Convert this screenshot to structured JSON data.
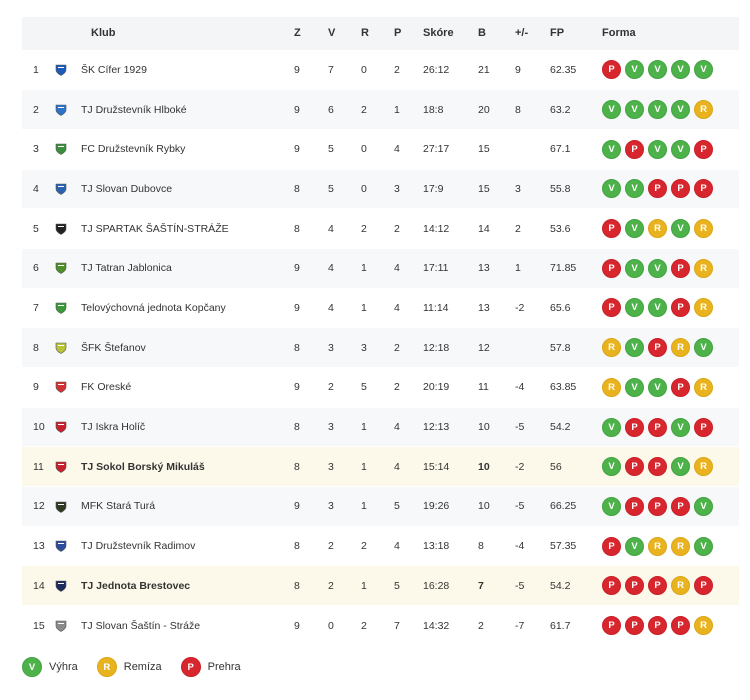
{
  "header": {
    "club": "Klub",
    "z": "Z",
    "v": "V",
    "r": "R",
    "p": "P",
    "score": "Skóre",
    "b": "B",
    "diff": "+/-",
    "fp": "FP",
    "form": "Forma"
  },
  "rows": [
    {
      "pos": "1",
      "club": "ŠK Cífer 1929",
      "z": "9",
      "v": "7",
      "r": "0",
      "p": "2",
      "score": "26:12",
      "b": "21",
      "diff": "9",
      "fp": "62.35",
      "form": [
        "P",
        "V",
        "V",
        "V",
        "V"
      ],
      "crest": "#1e5ab8",
      "hl": false
    },
    {
      "pos": "2",
      "club": "TJ Družstevník Hlboké",
      "z": "9",
      "v": "6",
      "r": "2",
      "p": "1",
      "score": "18:8",
      "b": "20",
      "diff": "8",
      "fp": "63.2",
      "form": [
        "V",
        "V",
        "V",
        "V",
        "R"
      ],
      "crest": "#2d74c9",
      "hl": false
    },
    {
      "pos": "3",
      "club": "FC Družstevník Rybky",
      "z": "9",
      "v": "5",
      "r": "0",
      "p": "4",
      "score": "27:17",
      "b": "15",
      "diff": "",
      "fp": "67.1",
      "form": [
        "V",
        "P",
        "V",
        "V",
        "P"
      ],
      "crest": "#3b8e3b",
      "hl": false
    },
    {
      "pos": "4",
      "club": "TJ Slovan Dubovce",
      "z": "8",
      "v": "5",
      "r": "0",
      "p": "3",
      "score": "17:9",
      "b": "15",
      "diff": "3",
      "fp": "55.8",
      "form": [
        "V",
        "V",
        "P",
        "P",
        "P"
      ],
      "crest": "#2a62b0",
      "hl": false
    },
    {
      "pos": "5",
      "club": "TJ SPARTAK ŠAŠTÍN-STRÁŽE",
      "z": "8",
      "v": "4",
      "r": "2",
      "p": "2",
      "score": "14:12",
      "b": "14",
      "diff": "2",
      "fp": "53.6",
      "form": [
        "P",
        "V",
        "R",
        "V",
        "R"
      ],
      "crest": "#222222",
      "hl": false
    },
    {
      "pos": "6",
      "club": "TJ Tatran Jablonica",
      "z": "9",
      "v": "4",
      "r": "1",
      "p": "4",
      "score": "17:11",
      "b": "13",
      "diff": "1",
      "fp": "71.85",
      "form": [
        "P",
        "V",
        "V",
        "P",
        "R"
      ],
      "crest": "#4f8f2a",
      "hl": false
    },
    {
      "pos": "7",
      "club": "Telovýchovná jednota Kopčany",
      "z": "9",
      "v": "4",
      "r": "1",
      "p": "4",
      "score": "11:14",
      "b": "13",
      "diff": "-2",
      "fp": "65.6",
      "form": [
        "P",
        "V",
        "V",
        "P",
        "R"
      ],
      "crest": "#3a9a3a",
      "hl": false
    },
    {
      "pos": "8",
      "club": "ŠFK Štefanov",
      "z": "8",
      "v": "3",
      "r": "3",
      "p": "2",
      "score": "12:18",
      "b": "12",
      "diff": "",
      "fp": "57.8",
      "form": [
        "R",
        "V",
        "P",
        "R",
        "V"
      ],
      "crest": "#b9c33a",
      "hl": false
    },
    {
      "pos": "9",
      "club": "FK Oreské",
      "z": "9",
      "v": "2",
      "r": "5",
      "p": "2",
      "score": "20:19",
      "b": "11",
      "diff": "-4",
      "fp": "63.85",
      "form": [
        "R",
        "V",
        "V",
        "P",
        "R"
      ],
      "crest": "#d23232",
      "hl": false
    },
    {
      "pos": "10",
      "club": "TJ Iskra Holíč",
      "z": "8",
      "v": "3",
      "r": "1",
      "p": "4",
      "score": "12:13",
      "b": "10",
      "diff": "-5",
      "fp": "54.2",
      "form": [
        "V",
        "P",
        "P",
        "V",
        "P"
      ],
      "crest": "#c8202c",
      "hl": false
    },
    {
      "pos": "11",
      "club": "TJ Sokol Borský Mikuláš",
      "z": "8",
      "v": "3",
      "r": "1",
      "p": "4",
      "score": "15:14",
      "b": "10",
      "diff": "-2",
      "fp": "56",
      "form": [
        "V",
        "P",
        "P",
        "V",
        "R"
      ],
      "crest": "#c8202c",
      "hl": true
    },
    {
      "pos": "12",
      "club": "MFK Stará Turá",
      "z": "9",
      "v": "3",
      "r": "1",
      "p": "5",
      "score": "19:26",
      "b": "10",
      "diff": "-5",
      "fp": "66.25",
      "form": [
        "V",
        "P",
        "P",
        "P",
        "V"
      ],
      "crest": "#2e3a1f",
      "hl": false
    },
    {
      "pos": "13",
      "club": "TJ Družstevník Radimov",
      "z": "8",
      "v": "2",
      "r": "2",
      "p": "4",
      "score": "13:18",
      "b": "8",
      "diff": "-4",
      "fp": "57.35",
      "form": [
        "P",
        "V",
        "R",
        "R",
        "V"
      ],
      "crest": "#2c4d9b",
      "hl": false
    },
    {
      "pos": "14",
      "club": "TJ Jednota Brestovec",
      "z": "8",
      "v": "2",
      "r": "1",
      "p": "5",
      "score": "16:28",
      "b": "7",
      "diff": "-5",
      "fp": "54.2",
      "form": [
        "P",
        "P",
        "P",
        "R",
        "P"
      ],
      "crest": "#1d2b5a",
      "hl": true
    },
    {
      "pos": "15",
      "club": "TJ Slovan Šaštín - Stráže",
      "z": "9",
      "v": "0",
      "r": "2",
      "p": "7",
      "score": "14:32",
      "b": "2",
      "diff": "-7",
      "fp": "61.7",
      "form": [
        "P",
        "P",
        "P",
        "P",
        "R"
      ],
      "crest": "#8a8a8a",
      "hl": false
    }
  ],
  "legend": {
    "win_letter": "V",
    "win_label": "Výhra",
    "draw_letter": "R",
    "draw_label": "Remíza",
    "loss_letter": "P",
    "loss_label": "Prehra"
  },
  "colors": {
    "win": "#4db24a",
    "draw": "#e9b21f",
    "loss": "#d8262e",
    "highlight_row": "#fdf9ea"
  }
}
